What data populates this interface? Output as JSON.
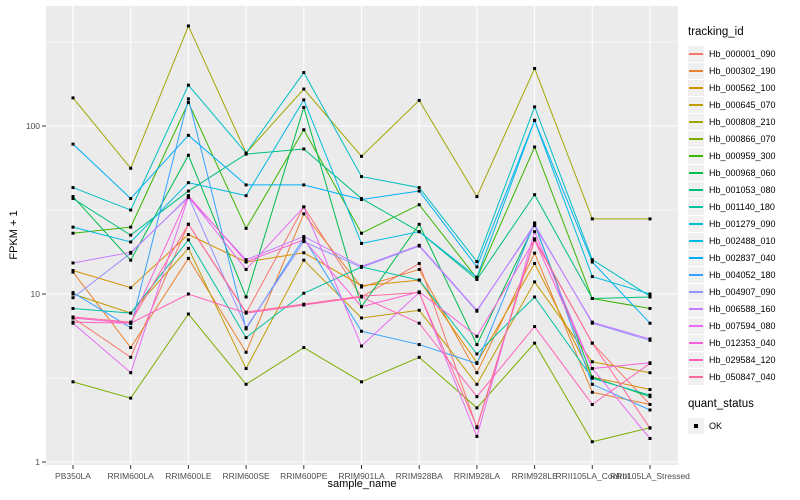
{
  "figure": {
    "panel_background": "#EBEBEB",
    "grid_color": "#FFFFFF",
    "tick_label_color": "#4D4D4D",
    "tick_mark_color": "#333333"
  },
  "axes": {
    "x_title": "sample_name",
    "y_title": "FPKM + 1",
    "y_tick_labels": [
      "1",
      "10",
      "100"
    ]
  },
  "legend": {
    "tracking_title": "tracking_id",
    "quant_title": "quant_status",
    "quant_items": [
      {
        "label": "OK",
        "symbol": "black-square-icon",
        "color": "#000000"
      }
    ]
  },
  "chart_data": {
    "type": "line",
    "x_categories": [
      "PB350LA",
      "RRIM600LA",
      "RRIM600LE",
      "RRIM600SE",
      "RRIM600PE",
      "RRIM901LA",
      "RRIM928BA",
      "RRIM928LA",
      "RRIM928LE",
      "RRII105LA_Control",
      "RRII105LA_Stressed"
    ],
    "xlabel": "sample_name",
    "ylabel": "FPKM + 1",
    "y_scale": "log10",
    "y_major_ticks": [
      1,
      10,
      100
    ],
    "y_minor_ticks": [
      3.162,
      31.62,
      316.2
    ],
    "ylim": [
      1,
      520
    ],
    "grid": true,
    "legend_position": "right",
    "legend_title": "tracking_id",
    "point_marker": "black square (quant_status OK)",
    "series": [
      {
        "name": "Hb_000001_090",
        "color": "#F8766D",
        "values": [
          7.2,
          4.2,
          26,
          7.7,
          33,
          9.6,
          15.2,
          1.6,
          21,
          5.1,
          2.2
        ]
      },
      {
        "name": "Hb_000302_190",
        "color": "#EA8331",
        "values": [
          13.5,
          4.8,
          16.3,
          4.5,
          30,
          11,
          14,
          3.4,
          17.5,
          2.6,
          2.2
        ]
      },
      {
        "name": "Hb_000562_100",
        "color": "#D89000",
        "values": [
          13.8,
          10.9,
          22.6,
          15.5,
          17.6,
          11.2,
          12.1,
          3.9,
          15.2,
          3.2,
          2.7
        ]
      },
      {
        "name": "Hb_000645_070",
        "color": "#C09B00",
        "values": [
          10,
          7.7,
          18.7,
          3.6,
          15.9,
          7.2,
          8.0,
          2.9,
          11.8,
          3.95,
          3.4
        ]
      },
      {
        "name": "Hb_000808_210",
        "color": "#A3A500",
        "values": [
          147,
          56,
          394,
          69,
          166,
          66,
          142,
          38,
          220,
          28,
          28
        ]
      },
      {
        "name": "Hb_000866_070",
        "color": "#7CAE00",
        "values": [
          3.0,
          2.4,
          7.6,
          2.9,
          4.8,
          3.0,
          4.2,
          2.1,
          5.1,
          1.32,
          1.6
        ]
      },
      {
        "name": "Hb_000959_300",
        "color": "#39B600",
        "values": [
          23,
          25,
          138,
          24.6,
          95,
          23,
          34,
          12.4,
          75,
          9.4,
          8.2
        ]
      },
      {
        "name": "Hb_000968_060",
        "color": "#00BB4E",
        "values": [
          38,
          15.9,
          67,
          9.6,
          129,
          8.4,
          26,
          5.0,
          26,
          3.2,
          2.45
        ]
      },
      {
        "name": "Hb_001053_080",
        "color": "#00BF7D",
        "values": [
          37,
          22.4,
          41,
          68,
          73,
          37,
          23.5,
          12.2,
          39,
          9.4,
          9.6
        ]
      },
      {
        "name": "Hb_001140_180",
        "color": "#00C1A3",
        "values": [
          8.2,
          7.7,
          21,
          5.5,
          10.1,
          14.5,
          12.1,
          4.4,
          9.6,
          3.15,
          2.5
        ]
      },
      {
        "name": "Hb_001279_090",
        "color": "#00BFC4",
        "values": [
          43,
          31.6,
          175,
          69,
          208,
          50,
          43,
          15.6,
          130,
          16,
          9.7
        ]
      },
      {
        "name": "Hb_002488_010",
        "color": "#00BAE0",
        "values": [
          25,
          20.4,
          46,
          38.5,
          143,
          20,
          23.5,
          12.6,
          108,
          12.7,
          10
        ]
      },
      {
        "name": "Hb_002837_040",
        "color": "#00B0F6",
        "values": [
          78,
          37,
          88,
          44.6,
          44.6,
          36.5,
          41,
          14.5,
          108,
          15.5,
          6.7
        ]
      },
      {
        "name": "Hb_004052_180",
        "color": "#35A2FF",
        "values": [
          10.2,
          6.3,
          145,
          6.2,
          21.5,
          6.0,
          5.0,
          3.86,
          26.5,
          2.9,
          2.04
        ]
      },
      {
        "name": "Hb_004907_090",
        "color": "#9590FF",
        "values": [
          9.5,
          17.5,
          38,
          6.3,
          20.5,
          14.4,
          19.3,
          7.9,
          26,
          6.7,
          5.3
        ]
      },
      {
        "name": "Hb_006588_160",
        "color": "#C77CFF",
        "values": [
          15.3,
          17.7,
          37.5,
          16,
          22,
          14.6,
          19.5,
          8.0,
          25.5,
          6.8,
          5.4
        ]
      },
      {
        "name": "Hb_007594_080",
        "color": "#E76BF3",
        "values": [
          6.7,
          3.4,
          38,
          14,
          33,
          4.9,
          10.2,
          1.42,
          23.5,
          3.6,
          1.38
        ]
      },
      {
        "name": "Hb_012353_040",
        "color": "#FA62DB",
        "values": [
          7.2,
          6.7,
          38.5,
          15.6,
          21,
          8.4,
          10.3,
          5.6,
          21,
          3.6,
          3.9
        ]
      },
      {
        "name": "Hb_029584_120",
        "color": "#FF62BC",
        "values": [
          6.8,
          6.7,
          10,
          7.7,
          8.6,
          9.6,
          6.7,
          2.45,
          6.4,
          2.2,
          3.86
        ]
      },
      {
        "name": "Hb_050847_040",
        "color": "#FF6A98",
        "values": [
          7.3,
          6.8,
          26,
          7.8,
          8.7,
          9.7,
          10.2,
          1.62,
          21.3,
          5.1,
          1.59
        ]
      }
    ]
  }
}
